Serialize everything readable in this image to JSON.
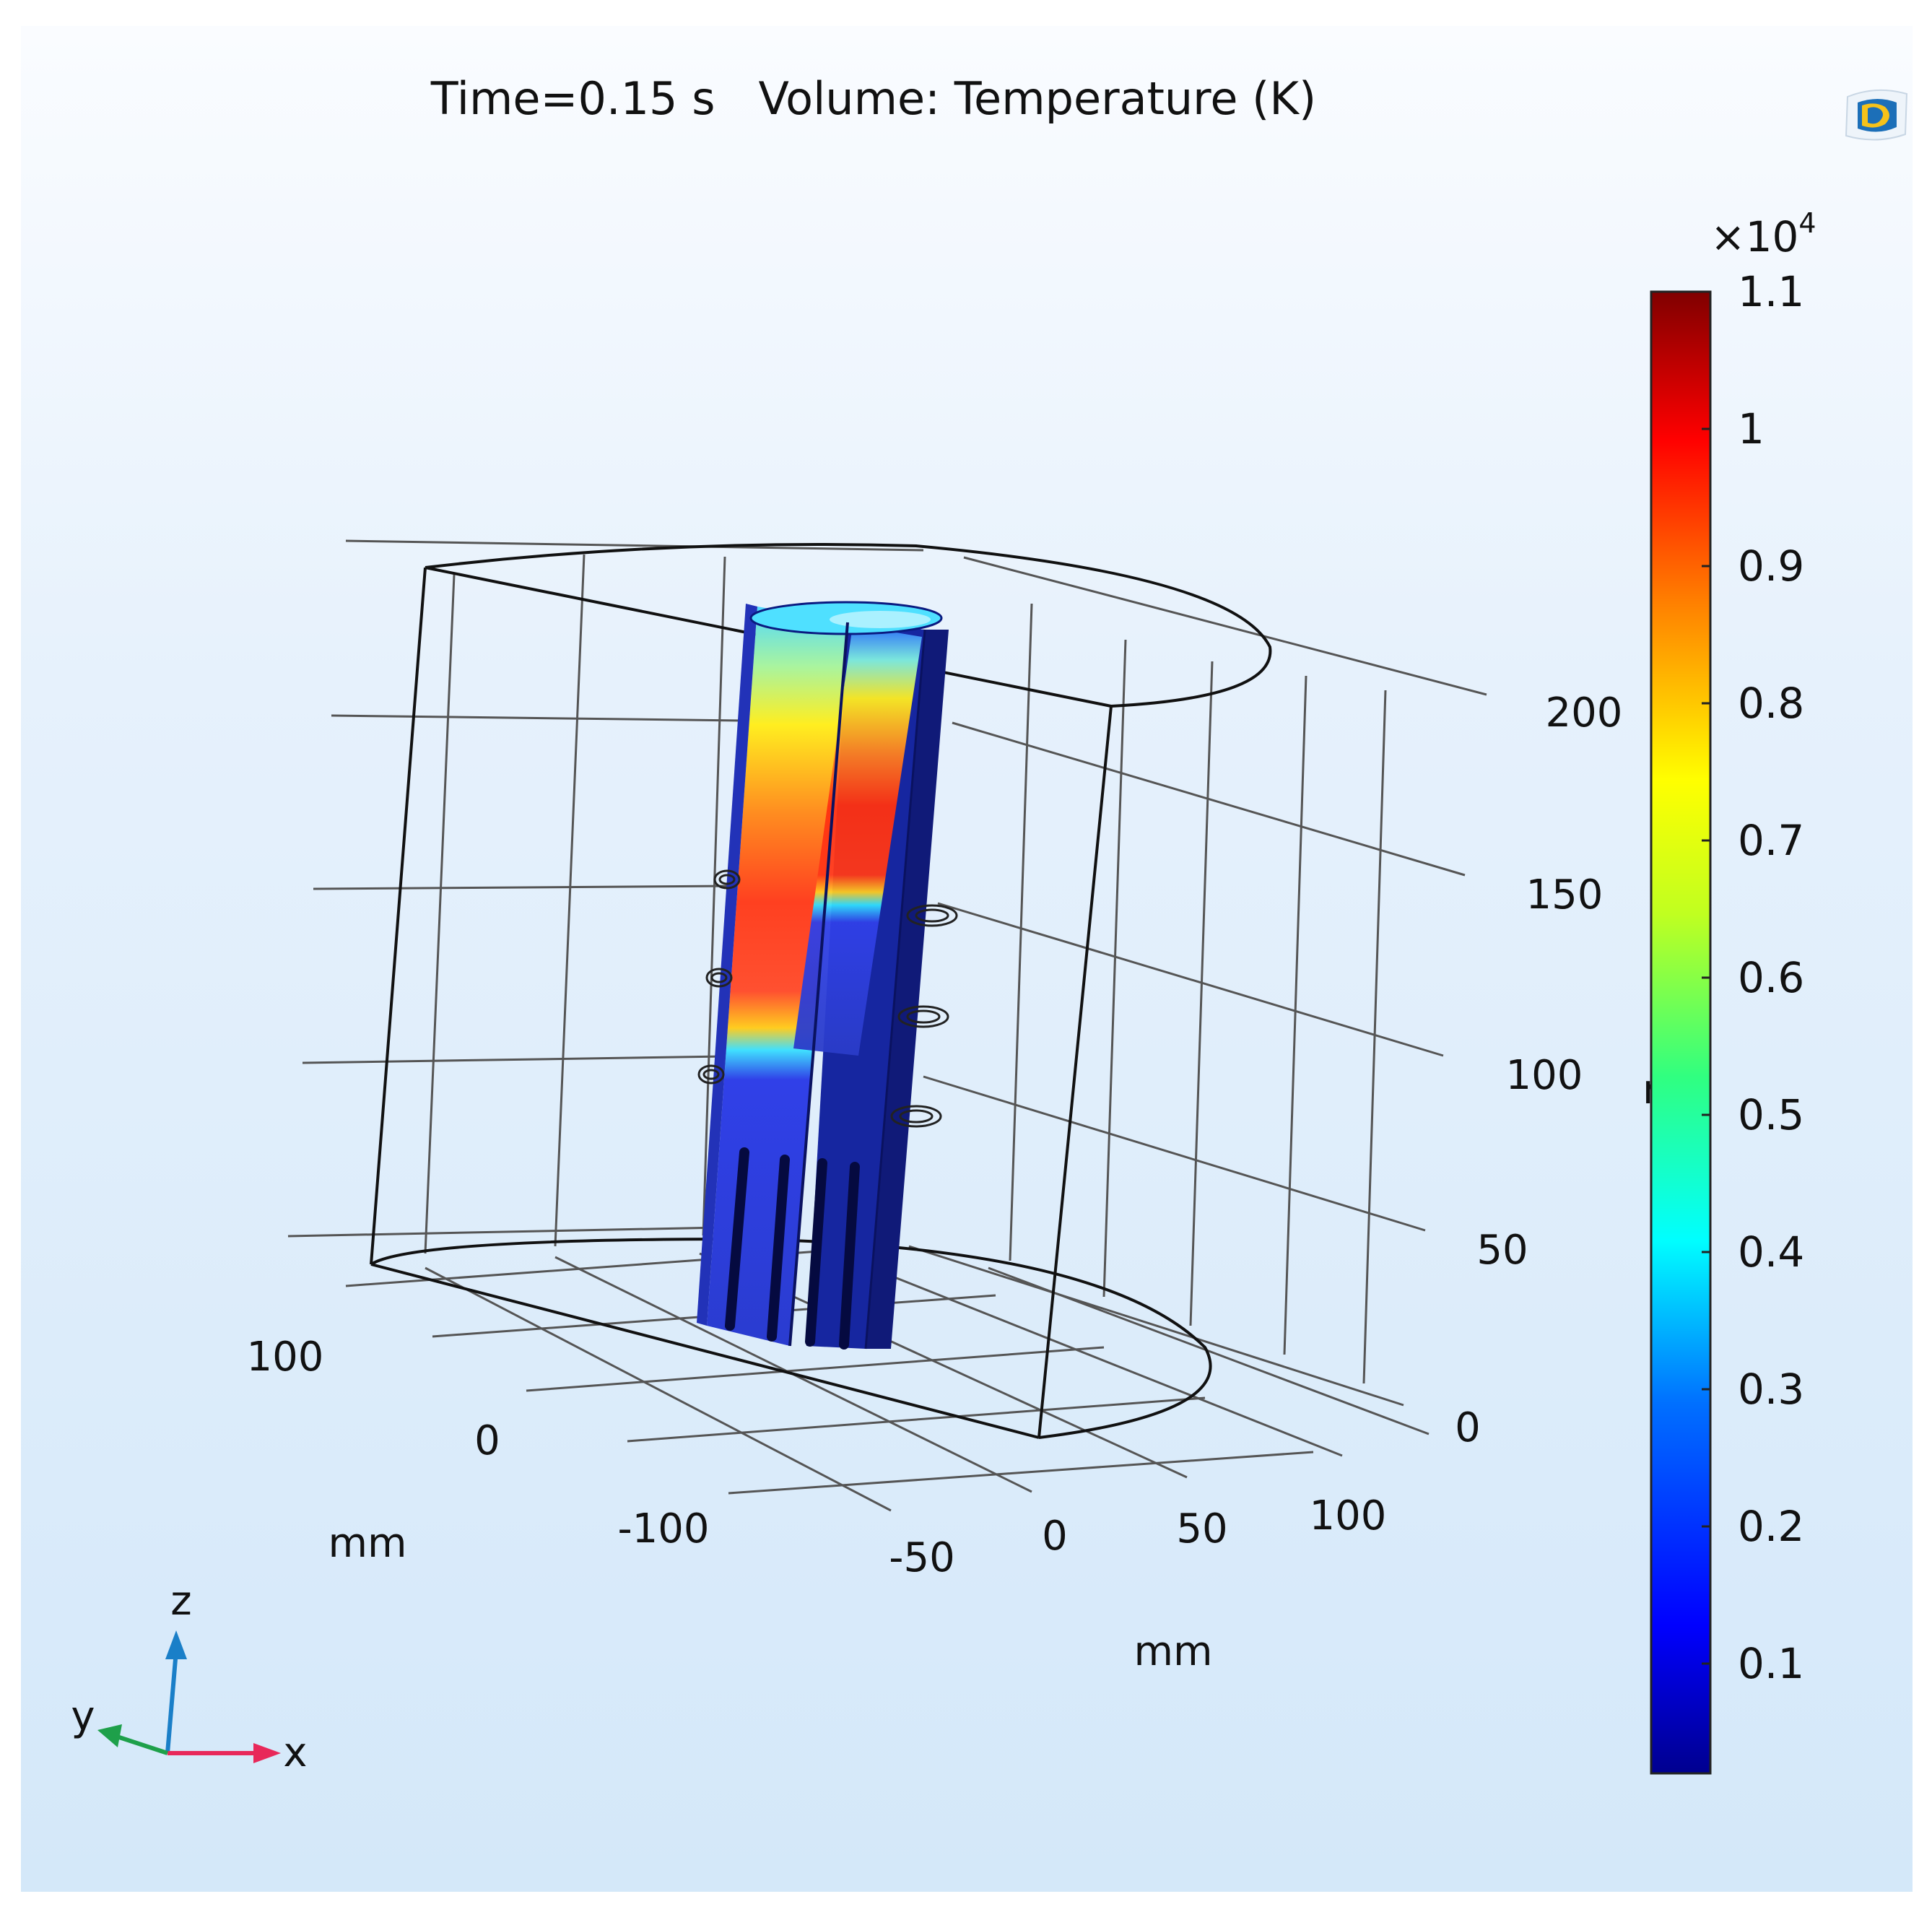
{
  "plot": {
    "title_time": "Time=0.15 s",
    "title_quantity": "Volume: Temperature (K)"
  },
  "axes": {
    "z_ticks": [
      "200",
      "150",
      "100",
      "50",
      "0"
    ],
    "z_unit_partial": "m",
    "y_ticks": [
      "100",
      "0"
    ],
    "y_unit": "mm",
    "x_ticks_left": [
      "-100",
      "-50"
    ],
    "x_ticks_right": [
      "0",
      "50",
      "100"
    ],
    "x_unit": "mm"
  },
  "colorbar": {
    "multiplier_base": "×10",
    "multiplier_exp": "4",
    "ticks": [
      "1.1",
      "1",
      "0.9",
      "0.8",
      "0.7",
      "0.6",
      "0.5",
      "0.4",
      "0.3",
      "0.2",
      "0.1"
    ],
    "colormap": "rainbow",
    "min_value": 0.02,
    "max_value": 1.1
  },
  "triad": {
    "z_label": "z",
    "y_label": "y",
    "x_label": "x",
    "z_color": "#1a7fc8",
    "y_color": "#1ea04a",
    "x_color": "#e8285a"
  },
  "logo": {
    "icon": "comsol-logo-icon"
  }
}
